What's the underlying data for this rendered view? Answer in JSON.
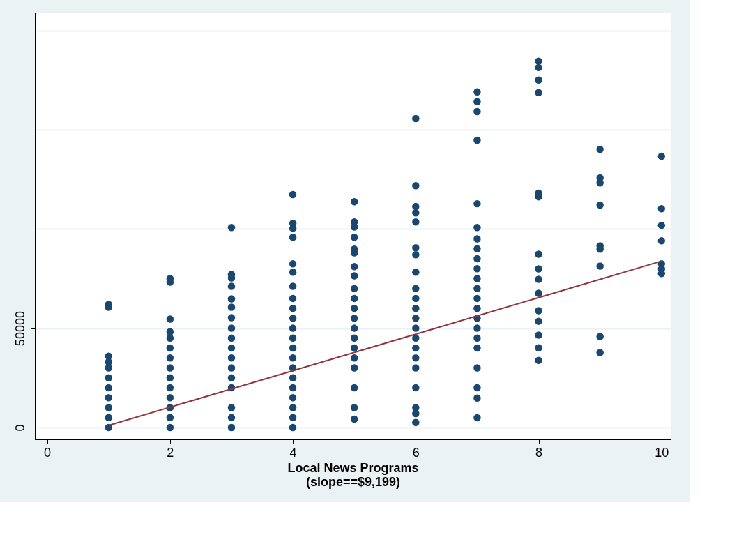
{
  "chart_data": {
    "type": "scatter",
    "xlabel": "Local News Programs",
    "annotations": [
      "(slope==$9,199)"
    ],
    "xlim": [
      -0.2,
      10.15
    ],
    "xticks": [
      0,
      2,
      4,
      6,
      8,
      10
    ],
    "ylim": [
      -6000,
      209000
    ],
    "yticks": [
      0,
      50000,
      {
        "value": 100000,
        "label": null
      },
      {
        "value": 150000,
        "label": null
      },
      {
        "value": 200000,
        "label": null
      }
    ],
    "grid": "y",
    "series": [
      {
        "color": "#1a476f",
        "marker": "circle",
        "x": [
          1,
          1,
          1,
          1,
          1,
          1,
          1,
          1,
          1,
          1,
          1,
          2,
          2,
          2,
          2,
          2,
          2,
          2,
          2,
          2,
          2,
          2,
          2,
          2,
          2,
          3,
          3,
          3,
          3,
          3,
          3,
          3,
          3,
          3,
          3,
          3,
          3,
          3,
          3,
          3,
          3,
          3,
          4,
          4,
          4,
          4,
          4,
          4,
          4,
          4,
          4,
          4,
          4,
          4,
          4,
          4,
          4,
          4,
          4,
          4,
          4,
          4,
          4,
          5,
          5,
          5,
          5,
          5,
          5,
          5,
          5,
          5,
          5,
          5,
          5,
          5,
          5,
          5,
          5,
          5,
          5,
          5,
          5,
          6,
          6,
          6,
          6,
          6,
          6,
          6,
          6,
          6,
          6,
          6,
          6,
          6,
          6,
          6,
          6,
          6,
          6,
          6,
          6,
          6,
          7,
          7,
          7,
          7,
          7,
          7,
          7,
          7,
          7,
          7,
          7,
          7,
          7,
          7,
          7,
          7,
          7,
          7,
          7,
          7,
          7,
          7,
          8,
          8,
          8,
          8,
          8,
          8,
          8,
          8,
          8,
          8,
          8,
          8,
          8,
          8,
          8,
          9,
          9,
          9,
          9,
          9,
          9,
          9,
          9,
          9,
          10,
          10,
          10,
          10,
          10,
          10,
          10
        ],
        "values": [
          62000,
          60600,
          35900,
          33000,
          30000,
          25000,
          20000,
          15000,
          10000,
          5000,
          0,
          75000,
          73200,
          54600,
          48200,
          45000,
          40000,
          35000,
          30000,
          25000,
          20000,
          15000,
          10000,
          5000,
          0,
          100700,
          77100,
          75300,
          71100,
          64800,
          60600,
          55300,
          50000,
          45000,
          40000,
          35000,
          30000,
          25000,
          20000,
          10000,
          5000,
          0,
          117300,
          102800,
          100300,
          95800,
          82400,
          78200,
          71100,
          65000,
          60000,
          55000,
          50000,
          45000,
          40000,
          35000,
          30000,
          25000,
          20000,
          15000,
          10000,
          5000,
          0,
          113700,
          103500,
          101000,
          95800,
          89800,
          88000,
          81000,
          76400,
          70000,
          65000,
          60000,
          55000,
          50000,
          45000,
          40000,
          35000,
          30000,
          20000,
          10000,
          4200,
          155600,
          121800,
          111300,
          108100,
          103500,
          90500,
          87000,
          78200,
          70000,
          65000,
          60000,
          55000,
          50000,
          45000,
          40000,
          35000,
          30000,
          20000,
          10000,
          7000,
          2500,
          169000,
          164100,
          159100,
          144700,
          112700,
          100700,
          95000,
          90000,
          85000,
          80000,
          75000,
          70000,
          65000,
          60000,
          55000,
          50000,
          45000,
          40000,
          30000,
          20000,
          14800,
          4900,
          184500,
          181300,
          175000,
          168700,
          118000,
          116200,
          87300,
          79900,
          74600,
          67600,
          58800,
          53500,
          46500,
          40100,
          33800,
          140100,
          125700,
          123200,
          112000,
          91500,
          89800,
          81300,
          45800,
          37700,
          136600,
          110200,
          101800,
          94000,
          82400,
          79900,
          77500
        ]
      },
      {
        "type": "line",
        "color": "#90353b",
        "x": [
          1,
          10
        ],
        "values": [
          1000,
          83800
        ]
      }
    ]
  }
}
